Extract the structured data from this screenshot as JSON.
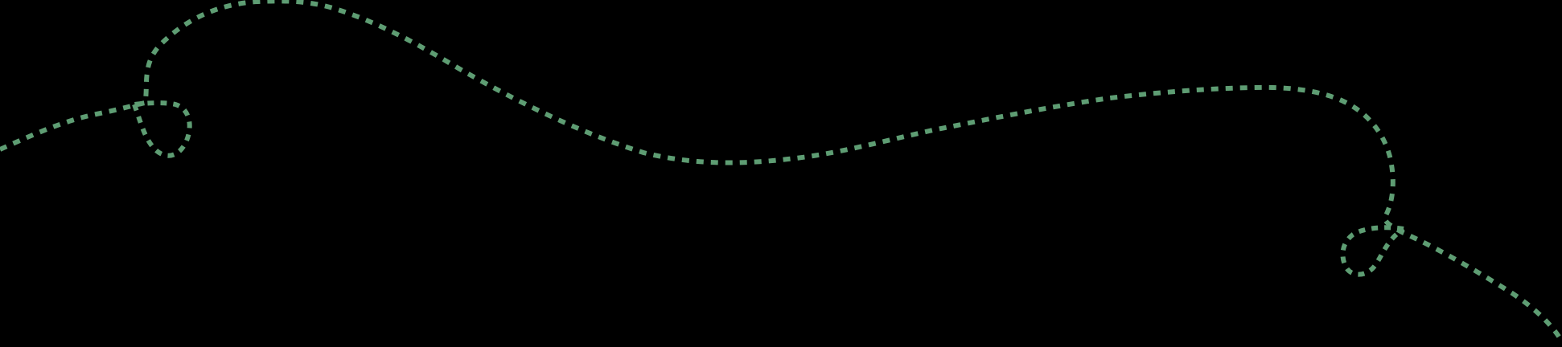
{
  "background_color": "#000000",
  "path_color": "#5e9d73",
  "path_style": "pixelated-dashed",
  "loop_count": 2,
  "icon": "dotted-curve-with-loops"
}
